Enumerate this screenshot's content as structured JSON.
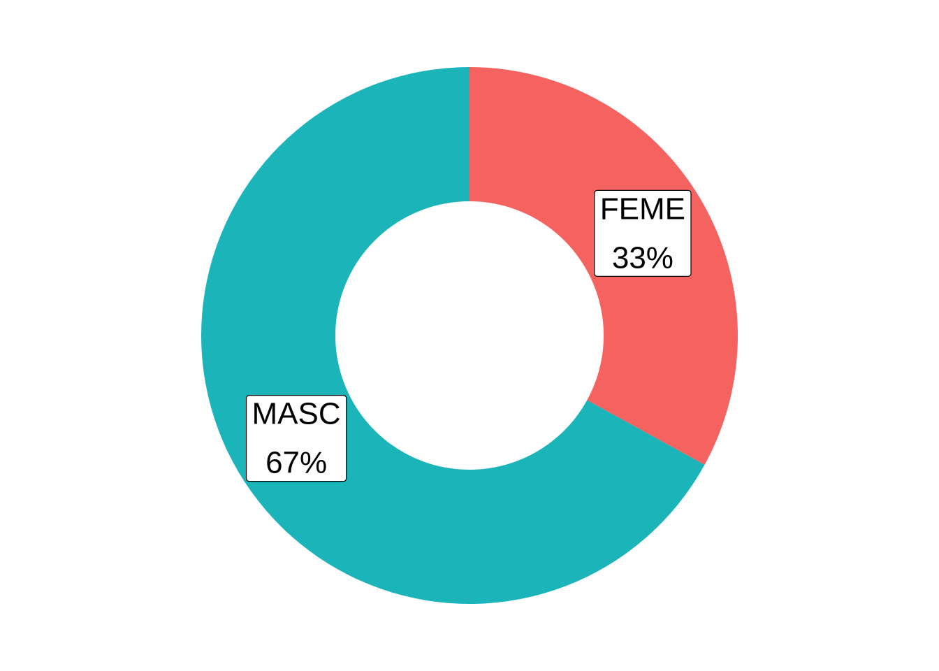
{
  "chart_data": {
    "type": "pie",
    "donut": true,
    "categories": [
      "FEME",
      "MASC"
    ],
    "values": [
      33,
      67
    ],
    "percent_labels": [
      "33%",
      "67%"
    ],
    "colors": [
      "#F46360",
      "#1BB4B9"
    ],
    "title": "",
    "legend": "none",
    "grid": false
  }
}
